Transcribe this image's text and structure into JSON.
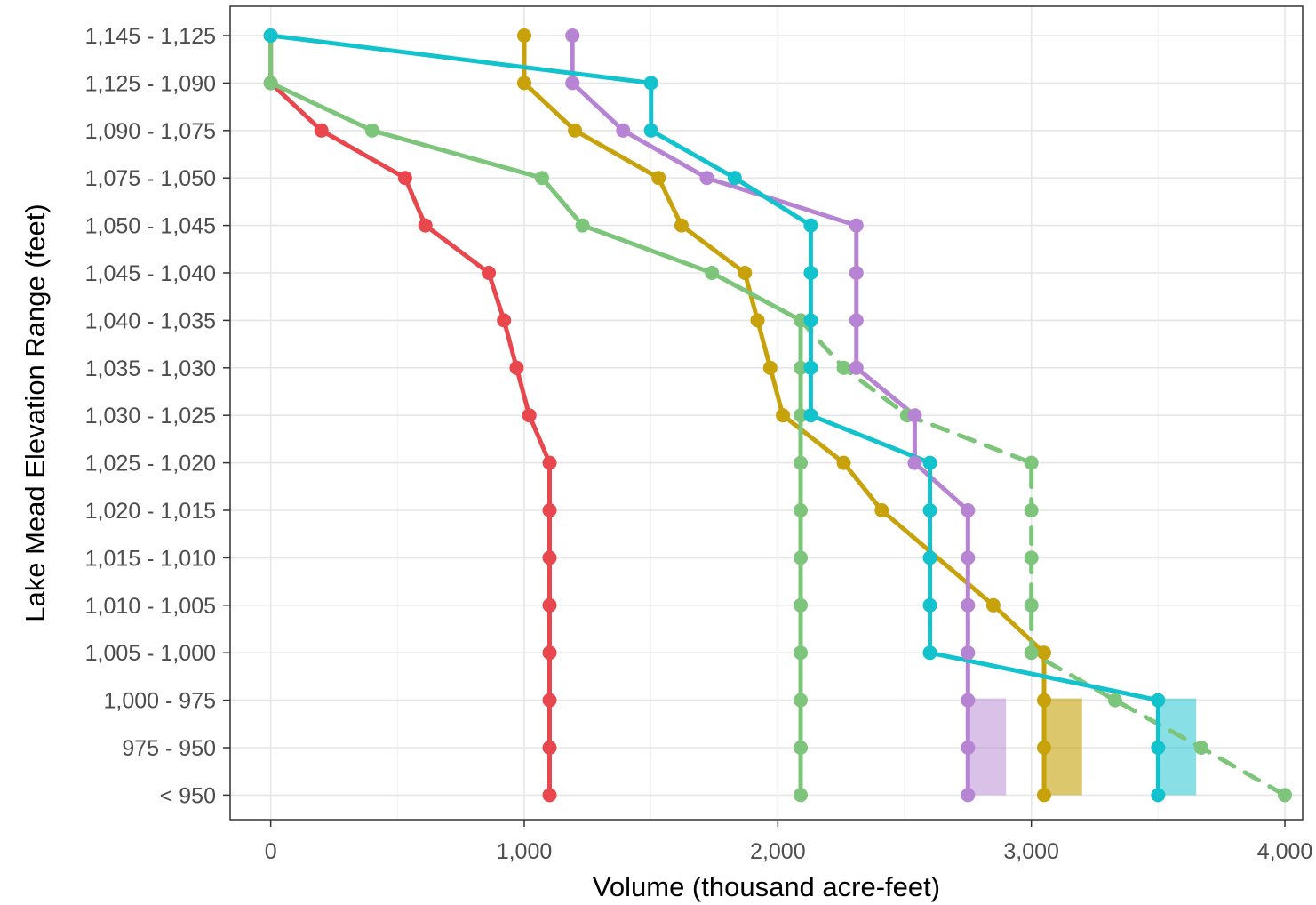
{
  "chart_data": {
    "type": "line",
    "xlabel": "Volume (thousand acre-feet)",
    "ylabel": "Lake Mead Elevation Range (feet)",
    "xlim": [
      -160,
      4070
    ],
    "x_ticks": [
      0,
      1000,
      2000,
      3000,
      4000
    ],
    "x_tick_labels": [
      "0",
      "1,000",
      "2,000",
      "3,000",
      "4,000"
    ],
    "categories": [
      "1,145 - 1,125",
      "1,125 - 1,090",
      "1,090 - 1,075",
      "1,075 - 1,050",
      "1,050 - 1,045",
      "1,045 - 1,040",
      "1,040 - 1,035",
      "1,035 - 1,030",
      "1,030 - 1,025",
      "1,025 - 1,020",
      "1,020 - 1,015",
      "1,015 - 1,010",
      "1,010 - 1,005",
      "1,005 - 1,000",
      "1,000 - 975",
      "975 - 950",
      "< 950"
    ],
    "grid": true,
    "legend": "none",
    "series": [
      {
        "color": "#e8474e",
        "style": "solid",
        "values": [
          0,
          0,
          200,
          530,
          610,
          860,
          920,
          970,
          1020,
          1100,
          1100,
          1100,
          1100,
          1100,
          1100,
          1100,
          1100
        ]
      },
      {
        "color": "#c7a20a",
        "style": "solid",
        "values": [
          1000,
          1000,
          1200,
          1530,
          1620,
          1870,
          1920,
          1970,
          2020,
          2260,
          2410,
          null,
          2850,
          3050,
          3050,
          3050,
          3050
        ]
      },
      {
        "color": "#7cc57a",
        "style": "solid",
        "values": [
          0,
          0,
          400,
          1070,
          1230,
          1740,
          2090,
          2090,
          2090,
          2090,
          2090,
          2090,
          2090,
          2090,
          2090,
          2090,
          2090
        ]
      },
      {
        "color": "#7cc57a",
        "style": "dashed",
        "values": [
          null,
          null,
          null,
          null,
          null,
          null,
          2090,
          2260,
          2510,
          3000,
          3000,
          3000,
          3000,
          3000,
          3330,
          3670,
          4000
        ]
      },
      {
        "color": "#b684d2",
        "style": "solid",
        "values": [
          1190,
          1190,
          1390,
          1720,
          2310,
          2310,
          2310,
          2310,
          2540,
          2540,
          2750,
          2750,
          2750,
          2750,
          2750,
          2750,
          2750
        ]
      },
      {
        "color": "#12c2cd",
        "style": "solid",
        "values": [
          0,
          1500,
          1500,
          1830,
          2130,
          2130,
          2130,
          2130,
          2130,
          2600,
          2600,
          2600,
          2600,
          2600,
          3500,
          3500,
          3500
        ]
      }
    ],
    "ranges": [
      {
        "color": "#b684d2",
        "opacity": 0.5,
        "x": [
          2750,
          2900
        ],
        "categories": [
          "1,000 - 975",
          "< 950"
        ]
      },
      {
        "color": "#c7a20a",
        "opacity": 0.6,
        "x": [
          3050,
          3200
        ],
        "categories": [
          "1,000 - 975",
          "< 950"
        ]
      },
      {
        "color": "#12c2cd",
        "opacity": 0.5,
        "x": [
          3500,
          3650
        ],
        "categories": [
          "1,000 - 975",
          "< 950"
        ]
      }
    ]
  }
}
